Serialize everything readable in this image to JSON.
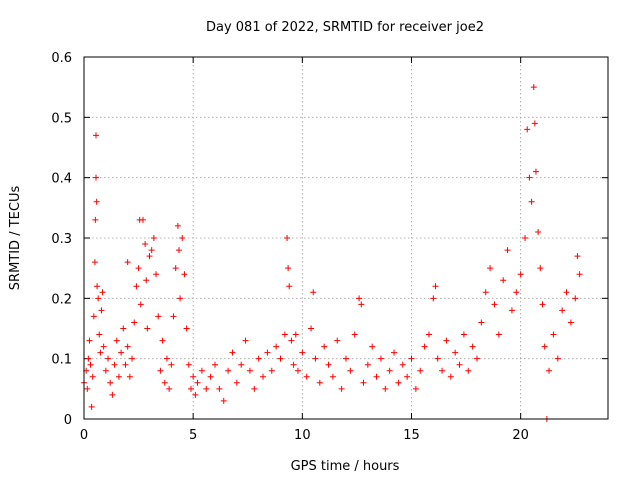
{
  "chart_data": {
    "type": "scatter",
    "title": "Day 081 of 2022, SRMTID for receiver joe2",
    "xlabel": "GPS time / hours",
    "ylabel": "SRMTID / TECUs",
    "xlim": [
      0,
      24
    ],
    "ylim": [
      0,
      0.6
    ],
    "xticks": [
      0,
      5,
      10,
      15,
      20
    ],
    "xtick_labels": [
      "0",
      "5",
      "10",
      "15",
      "20"
    ],
    "yticks": [
      0,
      0.1,
      0.2,
      0.3,
      0.4,
      0.5,
      0.6
    ],
    "ytick_labels": [
      "0",
      "0.1",
      "0.2",
      "0.3",
      "0.4",
      "0.5",
      "0.6"
    ],
    "grid": true,
    "marker": "+",
    "color": "#ff0000",
    "series": [
      {
        "name": "SRMTID",
        "points": [
          [
            0.0,
            0.06
          ],
          [
            0.1,
            0.08
          ],
          [
            0.15,
            0.05
          ],
          [
            0.2,
            0.1
          ],
          [
            0.25,
            0.13
          ],
          [
            0.3,
            0.09
          ],
          [
            0.35,
            0.02
          ],
          [
            0.4,
            0.07
          ],
          [
            0.45,
            0.17
          ],
          [
            0.5,
            0.26
          ],
          [
            0.52,
            0.33
          ],
          [
            0.55,
            0.47
          ],
          [
            0.55,
            0.4
          ],
          [
            0.58,
            0.36
          ],
          [
            0.6,
            0.22
          ],
          [
            0.65,
            0.2
          ],
          [
            0.7,
            0.14
          ],
          [
            0.75,
            0.11
          ],
          [
            0.8,
            0.18
          ],
          [
            0.85,
            0.21
          ],
          [
            0.9,
            0.12
          ],
          [
            1.0,
            0.08
          ],
          [
            1.1,
            0.1
          ],
          [
            1.2,
            0.06
          ],
          [
            1.3,
            0.04
          ],
          [
            1.4,
            0.09
          ],
          [
            1.5,
            0.13
          ],
          [
            1.6,
            0.07
          ],
          [
            1.7,
            0.11
          ],
          [
            1.8,
            0.15
          ],
          [
            1.9,
            0.09
          ],
          [
            2.0,
            0.12
          ],
          [
            2.0,
            0.26
          ],
          [
            2.1,
            0.07
          ],
          [
            2.2,
            0.1
          ],
          [
            2.3,
            0.16
          ],
          [
            2.4,
            0.22
          ],
          [
            2.5,
            0.25
          ],
          [
            2.55,
            0.33
          ],
          [
            2.6,
            0.19
          ],
          [
            2.7,
            0.33
          ],
          [
            2.8,
            0.29
          ],
          [
            2.85,
            0.23
          ],
          [
            2.9,
            0.15
          ],
          [
            3.0,
            0.27
          ],
          [
            3.1,
            0.28
          ],
          [
            3.2,
            0.3
          ],
          [
            3.3,
            0.24
          ],
          [
            3.4,
            0.17
          ],
          [
            3.5,
            0.08
          ],
          [
            3.6,
            0.13
          ],
          [
            3.7,
            0.06
          ],
          [
            3.8,
            0.1
          ],
          [
            3.9,
            0.05
          ],
          [
            4.0,
            0.09
          ],
          [
            4.1,
            0.17
          ],
          [
            4.2,
            0.25
          ],
          [
            4.3,
            0.32
          ],
          [
            4.35,
            0.28
          ],
          [
            4.4,
            0.2
          ],
          [
            4.5,
            0.3
          ],
          [
            4.6,
            0.24
          ],
          [
            4.7,
            0.15
          ],
          [
            4.8,
            0.09
          ],
          [
            4.9,
            0.05
          ],
          [
            5.0,
            0.07
          ],
          [
            5.1,
            0.04
          ],
          [
            5.2,
            0.06
          ],
          [
            5.4,
            0.08
          ],
          [
            5.6,
            0.05
          ],
          [
            5.8,
            0.07
          ],
          [
            6.0,
            0.09
          ],
          [
            6.2,
            0.05
          ],
          [
            6.4,
            0.03
          ],
          [
            6.6,
            0.08
          ],
          [
            6.8,
            0.11
          ],
          [
            7.0,
            0.06
          ],
          [
            7.2,
            0.09
          ],
          [
            7.4,
            0.13
          ],
          [
            7.6,
            0.08
          ],
          [
            7.8,
            0.05
          ],
          [
            8.0,
            0.1
          ],
          [
            8.2,
            0.07
          ],
          [
            8.4,
            0.11
          ],
          [
            8.6,
            0.08
          ],
          [
            8.8,
            0.12
          ],
          [
            9.0,
            0.1
          ],
          [
            9.2,
            0.14
          ],
          [
            9.3,
            0.3
          ],
          [
            9.35,
            0.25
          ],
          [
            9.4,
            0.22
          ],
          [
            9.5,
            0.13
          ],
          [
            9.6,
            0.09
          ],
          [
            9.7,
            0.14
          ],
          [
            9.8,
            0.08
          ],
          [
            10.0,
            0.11
          ],
          [
            10.2,
            0.07
          ],
          [
            10.4,
            0.15
          ],
          [
            10.5,
            0.21
          ],
          [
            10.6,
            0.1
          ],
          [
            10.8,
            0.06
          ],
          [
            11.0,
            0.12
          ],
          [
            11.2,
            0.09
          ],
          [
            11.4,
            0.07
          ],
          [
            11.6,
            0.13
          ],
          [
            11.8,
            0.05
          ],
          [
            12.0,
            0.1
          ],
          [
            12.2,
            0.08
          ],
          [
            12.4,
            0.14
          ],
          [
            12.6,
            0.2
          ],
          [
            12.7,
            0.19
          ],
          [
            12.8,
            0.06
          ],
          [
            13.0,
            0.09
          ],
          [
            13.2,
            0.12
          ],
          [
            13.4,
            0.07
          ],
          [
            13.6,
            0.1
          ],
          [
            13.8,
            0.05
          ],
          [
            14.0,
            0.08
          ],
          [
            14.2,
            0.11
          ],
          [
            14.4,
            0.06
          ],
          [
            14.6,
            0.09
          ],
          [
            14.8,
            0.07
          ],
          [
            15.0,
            0.1
          ],
          [
            15.2,
            0.05
          ],
          [
            15.4,
            0.08
          ],
          [
            15.6,
            0.12
          ],
          [
            15.8,
            0.14
          ],
          [
            16.0,
            0.2
          ],
          [
            16.1,
            0.22
          ],
          [
            16.2,
            0.1
          ],
          [
            16.4,
            0.08
          ],
          [
            16.6,
            0.13
          ],
          [
            16.8,
            0.07
          ],
          [
            17.0,
            0.11
          ],
          [
            17.2,
            0.09
          ],
          [
            17.4,
            0.14
          ],
          [
            17.6,
            0.08
          ],
          [
            17.8,
            0.12
          ],
          [
            18.0,
            0.1
          ],
          [
            18.2,
            0.16
          ],
          [
            18.4,
            0.21
          ],
          [
            18.6,
            0.25
          ],
          [
            18.8,
            0.19
          ],
          [
            19.0,
            0.14
          ],
          [
            19.2,
            0.23
          ],
          [
            19.4,
            0.28
          ],
          [
            19.6,
            0.18
          ],
          [
            19.8,
            0.21
          ],
          [
            20.0,
            0.24
          ],
          [
            20.2,
            0.3
          ],
          [
            20.3,
            0.48
          ],
          [
            20.4,
            0.4
          ],
          [
            20.5,
            0.36
          ],
          [
            20.6,
            0.55
          ],
          [
            20.65,
            0.49
          ],
          [
            20.7,
            0.41
          ],
          [
            20.8,
            0.31
          ],
          [
            20.9,
            0.25
          ],
          [
            21.0,
            0.19
          ],
          [
            21.1,
            0.12
          ],
          [
            21.2,
            0.0
          ],
          [
            21.3,
            0.08
          ],
          [
            21.5,
            0.14
          ],
          [
            21.7,
            0.1
          ],
          [
            21.9,
            0.18
          ],
          [
            22.1,
            0.21
          ],
          [
            22.3,
            0.16
          ],
          [
            22.5,
            0.2
          ],
          [
            22.6,
            0.27
          ],
          [
            22.7,
            0.24
          ]
        ]
      }
    ]
  }
}
